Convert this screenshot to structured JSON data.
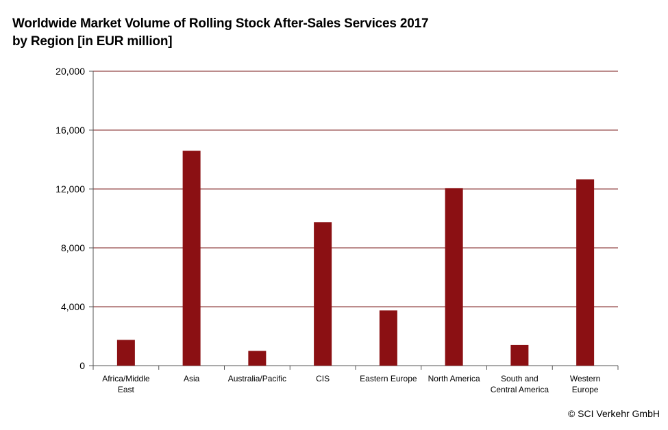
{
  "title_line1": "Worldwide Market Volume of Rolling Stock After-Sales Services 2017",
  "title_line2": "by Region [in EUR million]",
  "credit": "© SCI Verkehr GmbH",
  "colors": {
    "bar": "#8b1013",
    "grid": "#7a1a1a",
    "axis": "#555555"
  },
  "chart_data": {
    "type": "bar",
    "categories": [
      [
        "Africa/Middle",
        "East"
      ],
      [
        "Asia"
      ],
      [
        "Australia/Pacific"
      ],
      [
        "CIS"
      ],
      [
        "Eastern Europe"
      ],
      [
        "North America"
      ],
      [
        "South and",
        "Central America"
      ],
      [
        "Western",
        "Europe"
      ]
    ],
    "values": [
      1750,
      14600,
      1000,
      9750,
      3750,
      12050,
      1400,
      12650
    ],
    "ylim": [
      0,
      20000
    ],
    "yticks": [
      0,
      4000,
      8000,
      12000,
      16000,
      20000
    ],
    "ytick_labels": [
      "0",
      "4,000",
      "8,000",
      "12,000",
      "16,000",
      "20,000"
    ],
    "grid": true,
    "legend": "none"
  }
}
